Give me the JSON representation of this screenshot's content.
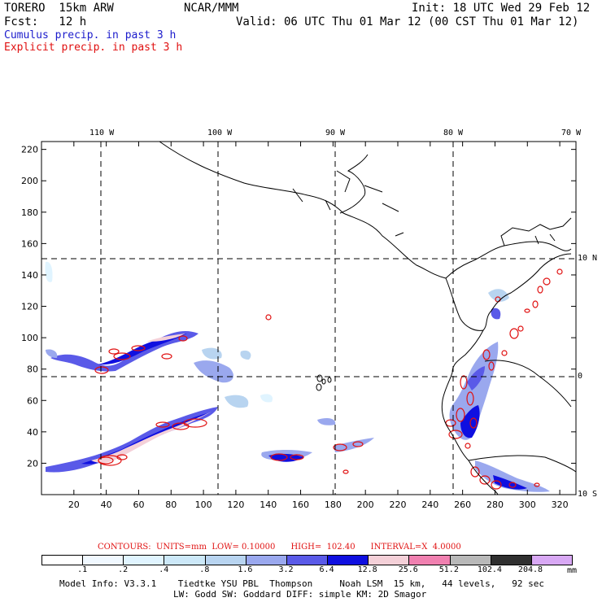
{
  "header": {
    "model": "TORERO  15km ARW",
    "org": "NCAR/MMM",
    "init": "Init: 18 UTC Wed 29 Feb 12",
    "fcst": "Fcst:   12 h",
    "valid": "Valid: 06 UTC Thu 01 Mar 12 (00 CST Thu 01 Mar 12)"
  },
  "legend": {
    "cumulus": "Cumulus precip. in past 3 h",
    "explicit": "Explicit precip. in past 3 h"
  },
  "colors": {
    "cumulus": "#1c1ccc",
    "explicit": "#e01010",
    "coast": "#000000",
    "grid": "#000000"
  },
  "chart_data": {
    "type": "heatmap",
    "title": "Cumulus and explicit precip. in past 3 h",
    "x_grid": {
      "min": 0,
      "max": 330,
      "ticks": [
        20,
        40,
        60,
        80,
        100,
        120,
        140,
        160,
        180,
        200,
        220,
        240,
        260,
        280,
        300,
        320
      ]
    },
    "y_grid": {
      "min": 0,
      "max": 225,
      "ticks": [
        20,
        40,
        60,
        80,
        100,
        120,
        140,
        160,
        180,
        200,
        220
      ]
    },
    "lon_labels": [
      "110 W",
      "100 W",
      "90 W",
      "80 W",
      "70 W"
    ],
    "lat_labels": [
      "10 N",
      "0",
      "10 S"
    ],
    "contours": {
      "units": "mm",
      "low": 0.1,
      "high": 102.4,
      "interval": 4.0,
      "text": "CONTOURS:  UNITS=mm  LOW= 0.10000      HIGH=  102.40      INTERVAL=X  4.0000"
    },
    "colorbar": {
      "levels": [
        ".1",
        ".2",
        ".4",
        ".8",
        "1.6",
        "3.2",
        "6.4",
        "12.8",
        "25.6",
        "51.2",
        "102.4",
        "204.8"
      ],
      "colors": [
        "#ffffff",
        "#f0f8ff",
        "#e0f4ff",
        "#cce8f8",
        "#b8d4f0",
        "#9aa8ee",
        "#5a5ae8",
        "#0f0fe0",
        "#f4d0d8",
        "#f080b0",
        "#b8b8b8",
        "#303030",
        "#d8a8f4"
      ],
      "unit": "mm"
    },
    "cumulus_regions": [
      {
        "name": "itcz-west-north",
        "x": [
          10,
          30,
          60,
          80,
          95,
          105
        ],
        "y": [
          92,
          86,
          88,
          96,
          102,
          100
        ]
      },
      {
        "name": "itcz-west-south",
        "x": [
          5,
          25,
          45,
          60,
          75,
          90,
          110
        ],
        "y": [
          18,
          20,
          24,
          32,
          42,
          50,
          55
        ]
      },
      {
        "name": "central-pacific",
        "x": [
          140,
          150,
          160,
          170,
          180
        ],
        "y": [
          24,
          22,
          24,
          26,
          28
        ]
      },
      {
        "name": "galapagos-cluster",
        "x": [
          174,
          176,
          178
        ],
        "y": [
          68,
          70,
          72
        ]
      },
      {
        "name": "ecuador-peru-coast",
        "x": [
          262,
          270,
          280,
          290,
          300,
          310,
          320
        ],
        "y": [
          40,
          50,
          70,
          90,
          120,
          20,
          10
        ]
      }
    ]
  },
  "footer": {
    "line1": "Model Info: V3.3.1    Tiedtke YSU PBL  Thompson     Noah LSM  15 km,   44 levels,   92 sec",
    "line2": "LW: Godd SW: Goddard DIFF: simple KM: 2D Smagor"
  }
}
